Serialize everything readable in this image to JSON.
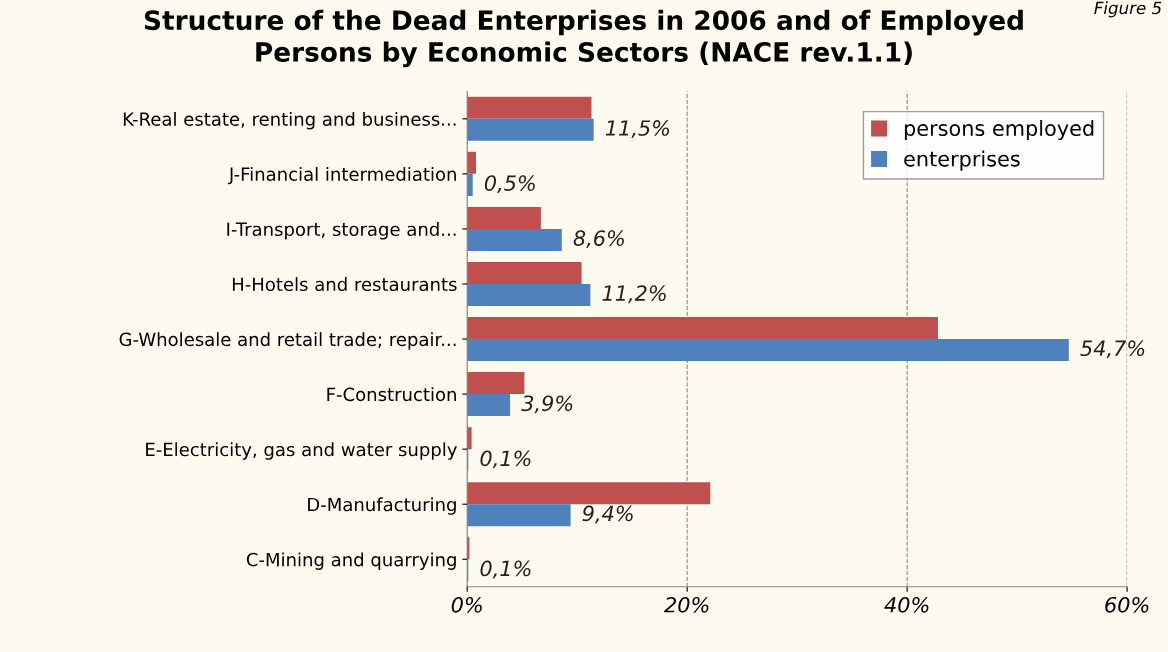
{
  "chart_data": {
    "type": "bar",
    "orientation": "horizontal",
    "title": "Structure of the Dead Enterprises in 2006 and of Employed\nPersons by Economic Sectors (NACE rev.1.1)",
    "annotations": [
      "Figure 5"
    ],
    "categories": [
      "K-Real estate, renting and business...",
      "J-Financial intermediation",
      "I-Transport, storage and...",
      "H-Hotels and restaurants",
      "G-Wholesale and retail trade; repair...",
      "F-Construction",
      "E-Electricity, gas and water supply",
      "D-Manufacturing",
      "C-Mining and quarrying"
    ],
    "series": [
      {
        "name": "persons employed",
        "color": "#c0504d",
        "values": [
          11.3,
          0.8,
          6.7,
          10.4,
          42.8,
          5.2,
          0.4,
          22.1,
          0.2
        ]
      },
      {
        "name": "enterprises",
        "color": "#4f81bd",
        "values": [
          11.5,
          0.5,
          8.6,
          11.2,
          54.7,
          3.9,
          0.1,
          9.4,
          0.1
        ],
        "value_labels": [
          "11,5%",
          "0,5%",
          "8,6%",
          "11,2%",
          "54,7%",
          "3,9%",
          "0,1%",
          "9,4%",
          "0,1%"
        ]
      }
    ],
    "xlim": [
      0,
      60
    ],
    "xticks": [
      {
        "value": 0,
        "label": "0%"
      },
      {
        "value": 20,
        "label": "20%"
      },
      {
        "value": 40,
        "label": "40%"
      },
      {
        "value": 60,
        "label": "60%"
      }
    ],
    "grid": "x",
    "legend": "top right"
  }
}
